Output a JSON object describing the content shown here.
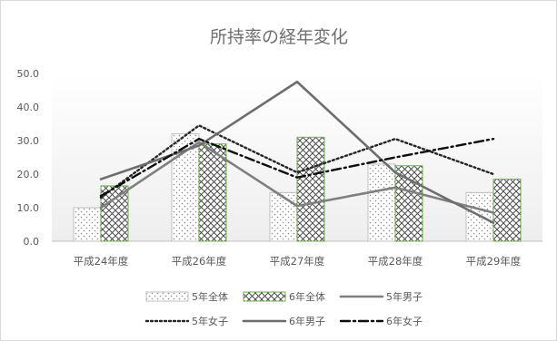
{
  "chart_data": {
    "type": "bar",
    "title": "所持率の経年変化",
    "categories": [
      "平成24年度",
      "平成26年度",
      "平成27年度",
      "平成28年度",
      "平成29年度"
    ],
    "ylim": [
      0,
      50
    ],
    "yticks": [
      "0.0",
      "10.0",
      "20.0",
      "30.0",
      "40.0",
      "50.0"
    ],
    "grid": false,
    "legend_position": "bottom",
    "bar_series": [
      {
        "name": "5年全体",
        "pattern": "dots",
        "color": "#bfbfbf",
        "values": [
          10.0,
          32.0,
          14.5,
          23.0,
          14.5
        ]
      },
      {
        "name": "6年全体",
        "pattern": "crosshatch",
        "color": "#595959",
        "border": "#70ad47",
        "values": [
          16.5,
          29.0,
          31.0,
          22.5,
          18.5
        ]
      }
    ],
    "line_series": [
      {
        "name": "5年男子",
        "style": "solid",
        "color": "#7f7f7f",
        "values": [
          10.0,
          29.5,
          10.5,
          16.0,
          8.5
        ]
      },
      {
        "name": "5年女子",
        "style": "dotted",
        "color": "#262626",
        "values": [
          13.0,
          34.5,
          20.5,
          30.5,
          20.0
        ]
      },
      {
        "name": "6年男子",
        "style": "solid",
        "color": "#6d6d6d",
        "values": [
          18.5,
          28.5,
          47.5,
          20.5,
          5.5
        ]
      },
      {
        "name": "6年女子",
        "style": "dashdot",
        "color": "#0d0d0d",
        "values": [
          13.5,
          30.5,
          19.0,
          25.0,
          30.5
        ]
      }
    ]
  }
}
